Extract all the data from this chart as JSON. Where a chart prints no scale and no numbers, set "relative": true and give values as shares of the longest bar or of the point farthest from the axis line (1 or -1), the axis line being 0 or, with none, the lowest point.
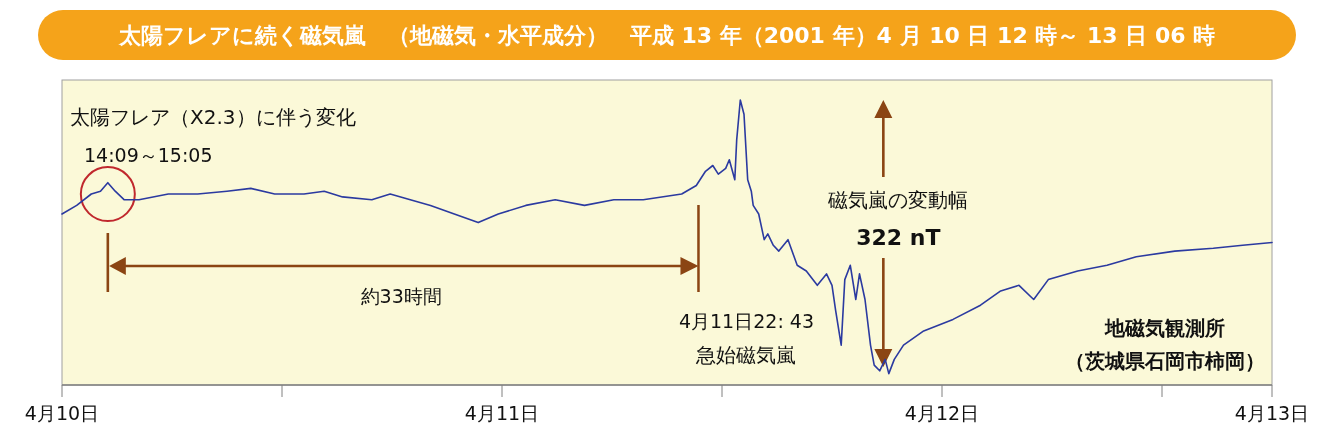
{
  "chart_data": {
    "type": "line",
    "title": "太陽フレアに続く磁気嵐　（地磁気・水平成分）　平成 13 年（2001 年）4 月 10 日 12 時～ 13 日 06 時",
    "relative": true,
    "xlim": [
      "2001-04-10T12:00",
      "2001-04-13T06:00"
    ],
    "xticks": [
      {
        "value": "2001-04-10T12:00",
        "label": "4月10日"
      },
      {
        "value": "2001-04-11T00:00",
        "label": null
      },
      {
        "value": "2001-04-11T12:00",
        "label": "4月11日"
      },
      {
        "value": "2001-04-12T00:00",
        "label": null
      },
      {
        "value": "2001-04-12T12:00",
        "label": "4月12日"
      },
      {
        "value": "2001-04-13T00:00",
        "label": null
      },
      {
        "value": "2001-04-13T06:00",
        "label": "4月13日"
      }
    ],
    "ref_lines": [
      {
        "axis": "x",
        "value": "2001-04-11T22:43",
        "label": "4月11日22: 43",
        "color": "#8b4513"
      }
    ],
    "annotations": [
      "太陽フレア（X2.3）に伴う変化",
      "14:09～15:05",
      "約33時間",
      "急始磁気嵐",
      "磁気嵐の変動幅",
      "322 nT",
      "地磁気観測所",
      "（茨城県石岡市柿岡）"
    ],
    "series": [
      {
        "color": "#2b3aa0",
        "x": [
          "2001-04-10T12:00",
          "2001-04-10T12:48",
          "2001-04-10T13:36",
          "2001-04-10T14:06",
          "2001-04-10T14:30",
          "2001-04-10T14:54",
          "2001-04-10T15:24",
          "2001-04-10T16:12",
          "2001-04-10T17:48",
          "2001-04-10T19:24",
          "2001-04-10T21:00",
          "2001-04-10T22:18",
          "2001-04-10T23:36",
          "2001-04-11T01:12",
          "2001-04-11T02:18",
          "2001-04-11T03:18",
          "2001-04-11T04:54",
          "2001-04-11T05:54",
          "2001-04-11T07:00",
          "2001-04-11T08:06",
          "2001-04-11T09:24",
          "2001-04-11T10:42",
          "2001-04-11T11:48",
          "2001-04-11T13:18",
          "2001-04-11T14:54",
          "2001-04-11T16:30",
          "2001-04-11T18:06",
          "2001-04-11T19:42",
          "2001-04-11T21:48",
          "2001-04-11T22:36",
          "2001-04-11T22:48",
          "2001-04-11T23:06",
          "2001-04-11T23:30",
          "2001-04-11T23:48",
          "2001-04-12T00:12",
          "2001-04-12T00:24",
          "2001-04-12T00:42",
          "2001-04-12T00:48",
          "2001-04-12T01:00",
          "2001-04-12T01:12",
          "2001-04-12T01:24",
          "2001-04-12T01:36",
          "2001-04-12T01:42",
          "2001-04-12T02:00",
          "2001-04-12T02:18",
          "2001-04-12T02:30",
          "2001-04-12T02:48",
          "2001-04-12T03:06",
          "2001-04-12T03:36",
          "2001-04-12T04:06",
          "2001-04-12T04:36",
          "2001-04-12T05:12",
          "2001-04-12T05:42",
          "2001-04-12T06:00",
          "2001-04-12T06:12",
          "2001-04-12T06:30",
          "2001-04-12T06:42",
          "2001-04-12T07:00",
          "2001-04-12T07:18",
          "2001-04-12T07:30",
          "2001-04-12T07:48",
          "2001-04-12T08:06",
          "2001-04-12T08:18",
          "2001-04-12T08:36",
          "2001-04-12T08:54",
          "2001-04-12T09:06",
          "2001-04-12T09:24",
          "2001-04-12T09:54",
          "2001-04-12T11:00",
          "2001-04-12T12:36",
          "2001-04-12T14:06",
          "2001-04-12T15:12",
          "2001-04-12T16:12",
          "2001-04-12T17:00",
          "2001-04-12T17:48",
          "2001-04-12T19:24",
          "2001-04-12T21:00",
          "2001-04-12T22:36",
          "2001-04-13T00:42",
          "2001-04-13T02:48",
          "2001-04-13T04:24",
          "2001-04-13T06:00"
        ],
        "values": [
          0.6,
          0.63,
          0.67,
          0.68,
          0.71,
          0.68,
          0.65,
          0.65,
          0.67,
          0.67,
          0.68,
          0.69,
          0.67,
          0.67,
          0.68,
          0.66,
          0.65,
          0.67,
          0.65,
          0.63,
          0.6,
          0.57,
          0.6,
          0.63,
          0.65,
          0.63,
          0.65,
          0.65,
          0.67,
          0.7,
          0.72,
          0.75,
          0.77,
          0.74,
          0.76,
          0.79,
          0.72,
          0.86,
          1,
          0.95,
          0.72,
          0.68,
          0.63,
          0.6,
          0.51,
          0.53,
          0.49,
          0.47,
          0.51,
          0.42,
          0.4,
          0.35,
          0.39,
          0.35,
          0.26,
          0.14,
          0.37,
          0.42,
          0.3,
          0.39,
          0.3,
          0.14,
          0.07,
          0.05,
          0.09,
          0.04,
          0.09,
          0.14,
          0.19,
          0.23,
          0.28,
          0.33,
          0.35,
          0.3,
          0.37,
          0.4,
          0.42,
          0.45,
          0.47,
          0.48,
          0.49,
          0.5
        ]
      }
    ]
  }
}
